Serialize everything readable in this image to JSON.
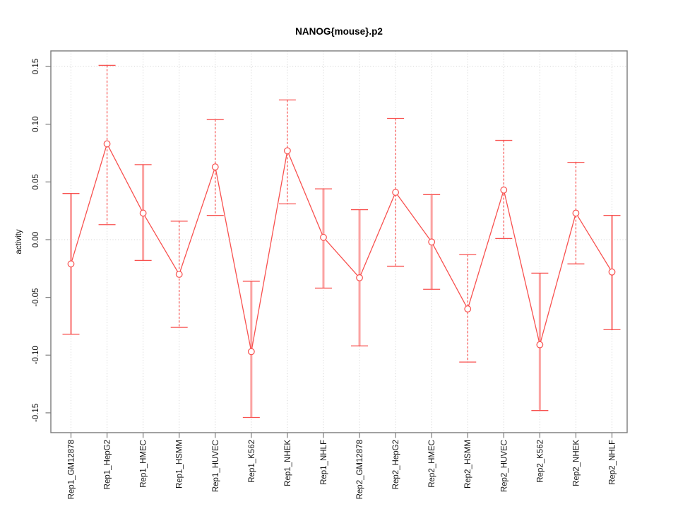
{
  "chart_data": {
    "type": "line",
    "title": "NANOG{mouse}.p2",
    "xlabel": "",
    "ylabel": "activity",
    "legend": "none",
    "categories": [
      "Rep1_GM12878",
      "Rep1_HepG2",
      "Rep1_HMEC",
      "Rep1_HSMM",
      "Rep1_HUVEC",
      "Rep1_K562",
      "Rep1_NHEK",
      "Rep1_NHLF",
      "Rep2_GM12878",
      "Rep2_HepG2",
      "Rep2_HMEC",
      "Rep2_HSMM",
      "Rep2_HUVEC",
      "Rep2_K562",
      "Rep2_NHEK",
      "Rep2_NHLF"
    ],
    "series": [
      {
        "name": "activity",
        "values": [
          -0.021,
          0.083,
          0.023,
          -0.03,
          0.063,
          -0.097,
          0.077,
          0.002,
          -0.033,
          0.041,
          -0.002,
          -0.06,
          0.043,
          -0.091,
          0.023,
          -0.028
        ],
        "err_hi": [
          0.04,
          0.151,
          0.065,
          0.016,
          0.104,
          -0.036,
          0.121,
          0.044,
          0.026,
          0.105,
          0.039,
          -0.013,
          0.086,
          -0.029,
          0.067,
          0.021
        ],
        "err_lo": [
          -0.082,
          0.013,
          -0.018,
          -0.076,
          0.021,
          -0.154,
          0.031,
          -0.042,
          -0.092,
          -0.023,
          -0.043,
          -0.106,
          0.001,
          -0.148,
          -0.021,
          -0.078
        ],
        "err_styles": [
          "solid",
          "dashed",
          "solid",
          "dashed",
          "dashed",
          "solid",
          "dashed",
          "solid",
          "solid",
          "dashed",
          "solid",
          "dashed",
          "dashed",
          "solid",
          "dashed",
          "solid"
        ],
        "marker": "open-circle"
      }
    ],
    "yticks": [
      0.15,
      0.1,
      0.05,
      0.0,
      -0.05,
      -0.1,
      -0.15
    ],
    "ylim": [
      -0.167,
      0.163
    ],
    "grid": {
      "vertical_at_categories": true,
      "horizontal_at": [
        0.15,
        0.0
      ],
      "style": "dotted"
    },
    "colors": {
      "series_red": "#f8514f",
      "error_bar_light": "#fba3a2",
      "grid": "#d6d6d6",
      "axis": "#7a7a7a",
      "text": "#111111",
      "background": "#ffffff"
    }
  }
}
